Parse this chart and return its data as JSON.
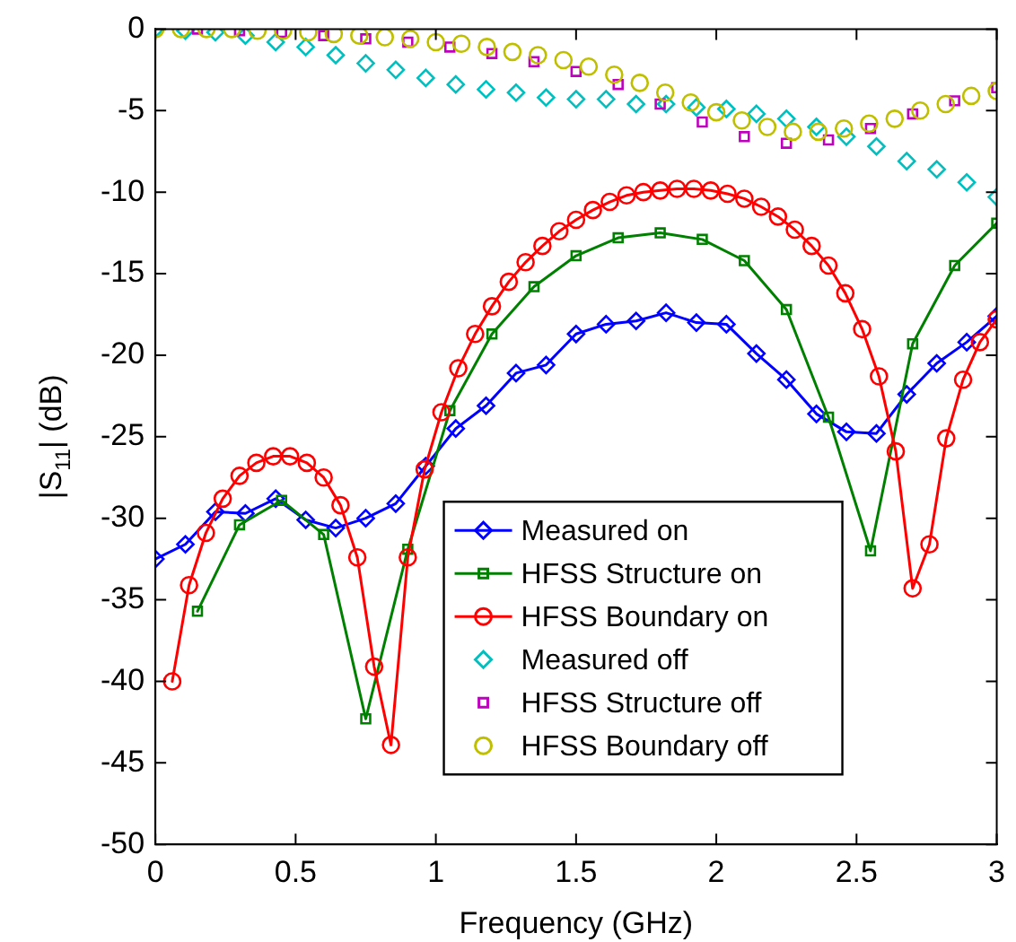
{
  "chart_data": {
    "type": "line",
    "xlabel": "Frequency (GHz)",
    "ylabel": "|S$_{11}$| (dB)",
    "xlim": [
      0,
      3
    ],
    "xticks": [
      0,
      0.5,
      1,
      1.5,
      2,
      2.5,
      3
    ],
    "ylim": [
      -50,
      0
    ],
    "yticks": [
      -50,
      -45,
      -40,
      -35,
      -30,
      -25,
      -20,
      -15,
      -10,
      -5,
      0
    ],
    "grid": false,
    "legend": "bottom right",
    "series": [
      {
        "name": "Measured on",
        "marker": "diamond",
        "color": "#0000ff",
        "x": [
          0,
          0.107,
          0.214,
          0.321,
          0.429,
          0.536,
          0.643,
          0.75,
          0.857,
          0.964,
          1.071,
          1.179,
          1.286,
          1.393,
          1.5,
          1.607,
          1.714,
          1.821,
          1.929,
          2.036,
          2.143,
          2.25,
          2.357,
          2.464,
          2.571,
          2.679,
          2.786,
          2.893,
          3
        ],
        "values": [
          -32.5,
          -31.6,
          -29.6,
          -29.7,
          -28.8,
          -30.1,
          -30.6,
          -30.0,
          -29.1,
          -26.8,
          -24.5,
          -23.1,
          -21.1,
          -20.6,
          -18.7,
          -18.1,
          -17.9,
          -17.4,
          -18.0,
          -18.1,
          -19.9,
          -21.5,
          -23.6,
          -24.7,
          -24.8,
          -22.4,
          -20.5,
          -19.2,
          -17.6
        ]
      },
      {
        "name": "HFSS Structure on",
        "marker": "square",
        "color": "#008000",
        "x": [
          0.15,
          0.3,
          0.45,
          0.6,
          0.75,
          0.9,
          1.05,
          1.2,
          1.35,
          1.5,
          1.65,
          1.8,
          1.95,
          2.1,
          2.25,
          2.4,
          2.55,
          2.7,
          2.85,
          3
        ],
        "values": [
          -35.7,
          -30.4,
          -28.9,
          -31.0,
          -42.3,
          -31.9,
          -23.4,
          -18.7,
          -15.8,
          -13.9,
          -12.8,
          -12.5,
          -12.9,
          -14.2,
          -17.2,
          -23.8,
          -32.0,
          -19.3,
          -14.5,
          -11.9
        ]
      },
      {
        "name": "HFSS Boundary on",
        "marker": "circle",
        "color": "#ff0000",
        "x": [
          0.06,
          0.12,
          0.18,
          0.24,
          0.3,
          0.36,
          0.42,
          0.48,
          0.54,
          0.6,
          0.66,
          0.72,
          0.78,
          0.84,
          0.9,
          0.96,
          1.02,
          1.08,
          1.14,
          1.2,
          1.26,
          1.32,
          1.38,
          1.44,
          1.5,
          1.56,
          1.62,
          1.68,
          1.74,
          1.8,
          1.86,
          1.92,
          1.98,
          2.04,
          2.1,
          2.16,
          2.22,
          2.28,
          2.34,
          2.4,
          2.46,
          2.52,
          2.58,
          2.64,
          2.7,
          2.76,
          2.82,
          2.88,
          2.94,
          3
        ],
        "values": [
          -40.0,
          -34.1,
          -30.9,
          -28.8,
          -27.4,
          -26.6,
          -26.2,
          -26.2,
          -26.6,
          -27.5,
          -29.2,
          -32.4,
          -39.1,
          -43.9,
          -32.4,
          -27.0,
          -23.5,
          -20.8,
          -18.7,
          -17.0,
          -15.5,
          -14.3,
          -13.3,
          -12.4,
          -11.7,
          -11.1,
          -10.6,
          -10.2,
          -10.0,
          -9.9,
          -9.8,
          -9.8,
          -9.9,
          -10.1,
          -10.4,
          -10.9,
          -11.5,
          -12.3,
          -13.3,
          -14.5,
          -16.2,
          -18.4,
          -21.3,
          -25.9,
          -34.3,
          -31.6,
          -25.1,
          -21.5,
          -19.2,
          -17.8
        ]
      },
      {
        "name": "Measured off",
        "type": "scatter",
        "marker": "diamond",
        "color": "#00bfbf",
        "x": [
          0,
          0.107,
          0.214,
          0.321,
          0.429,
          0.536,
          0.643,
          0.75,
          0.857,
          0.964,
          1.071,
          1.179,
          1.286,
          1.393,
          1.5,
          1.607,
          1.714,
          1.821,
          1.929,
          2.036,
          2.143,
          2.25,
          2.357,
          2.464,
          2.571,
          2.679,
          2.786,
          2.893,
          3
        ],
        "values": [
          0,
          -0.1,
          -0.2,
          -0.4,
          -0.8,
          -1.1,
          -1.6,
          -2.1,
          -2.5,
          -3.0,
          -3.4,
          -3.7,
          -3.9,
          -4.2,
          -4.3,
          -4.3,
          -4.6,
          -4.6,
          -4.8,
          -4.9,
          -5.2,
          -5.5,
          -6.0,
          -6.6,
          -7.2,
          -8.1,
          -8.6,
          -9.4,
          -10.3
        ]
      },
      {
        "name": "HFSS Structure off",
        "type": "scatter",
        "marker": "square",
        "color": "#bf00bf",
        "x": [
          0.15,
          0.3,
          0.45,
          0.6,
          0.75,
          0.9,
          1.05,
          1.2,
          1.35,
          1.5,
          1.65,
          1.8,
          1.95,
          2.1,
          2.25,
          2.4,
          2.55,
          2.7,
          2.85,
          3
        ],
        "values": [
          0,
          -0.1,
          -0.2,
          -0.4,
          -0.6,
          -0.8,
          -1.1,
          -1.5,
          -2.0,
          -2.6,
          -3.4,
          -4.6,
          -5.7,
          -6.6,
          -7.0,
          -6.8,
          -6.1,
          -5.2,
          -4.4,
          -3.6
        ]
      },
      {
        "name": "HFSS Boundary off",
        "type": "scatter",
        "marker": "circle",
        "color": "#bfbf00",
        "x": [
          0,
          0.091,
          0.182,
          0.273,
          0.364,
          0.455,
          0.545,
          0.636,
          0.727,
          0.818,
          0.909,
          1,
          1.091,
          1.182,
          1.273,
          1.364,
          1.455,
          1.545,
          1.636,
          1.727,
          1.818,
          1.909,
          2,
          2.091,
          2.182,
          2.273,
          2.364,
          2.455,
          2.545,
          2.636,
          2.727,
          2.818,
          2.909,
          3
        ],
        "values": [
          0,
          0,
          0,
          0,
          -0.1,
          -0.1,
          -0.2,
          -0.3,
          -0.4,
          -0.5,
          -0.6,
          -0.8,
          -0.9,
          -1.1,
          -1.4,
          -1.6,
          -1.9,
          -2.3,
          -2.8,
          -3.3,
          -3.9,
          -4.5,
          -5.1,
          -5.6,
          -6.0,
          -6.3,
          -6.3,
          -6.1,
          -5.8,
          -5.5,
          -5.0,
          -4.6,
          -4.1,
          -3.8
        ]
      }
    ]
  }
}
